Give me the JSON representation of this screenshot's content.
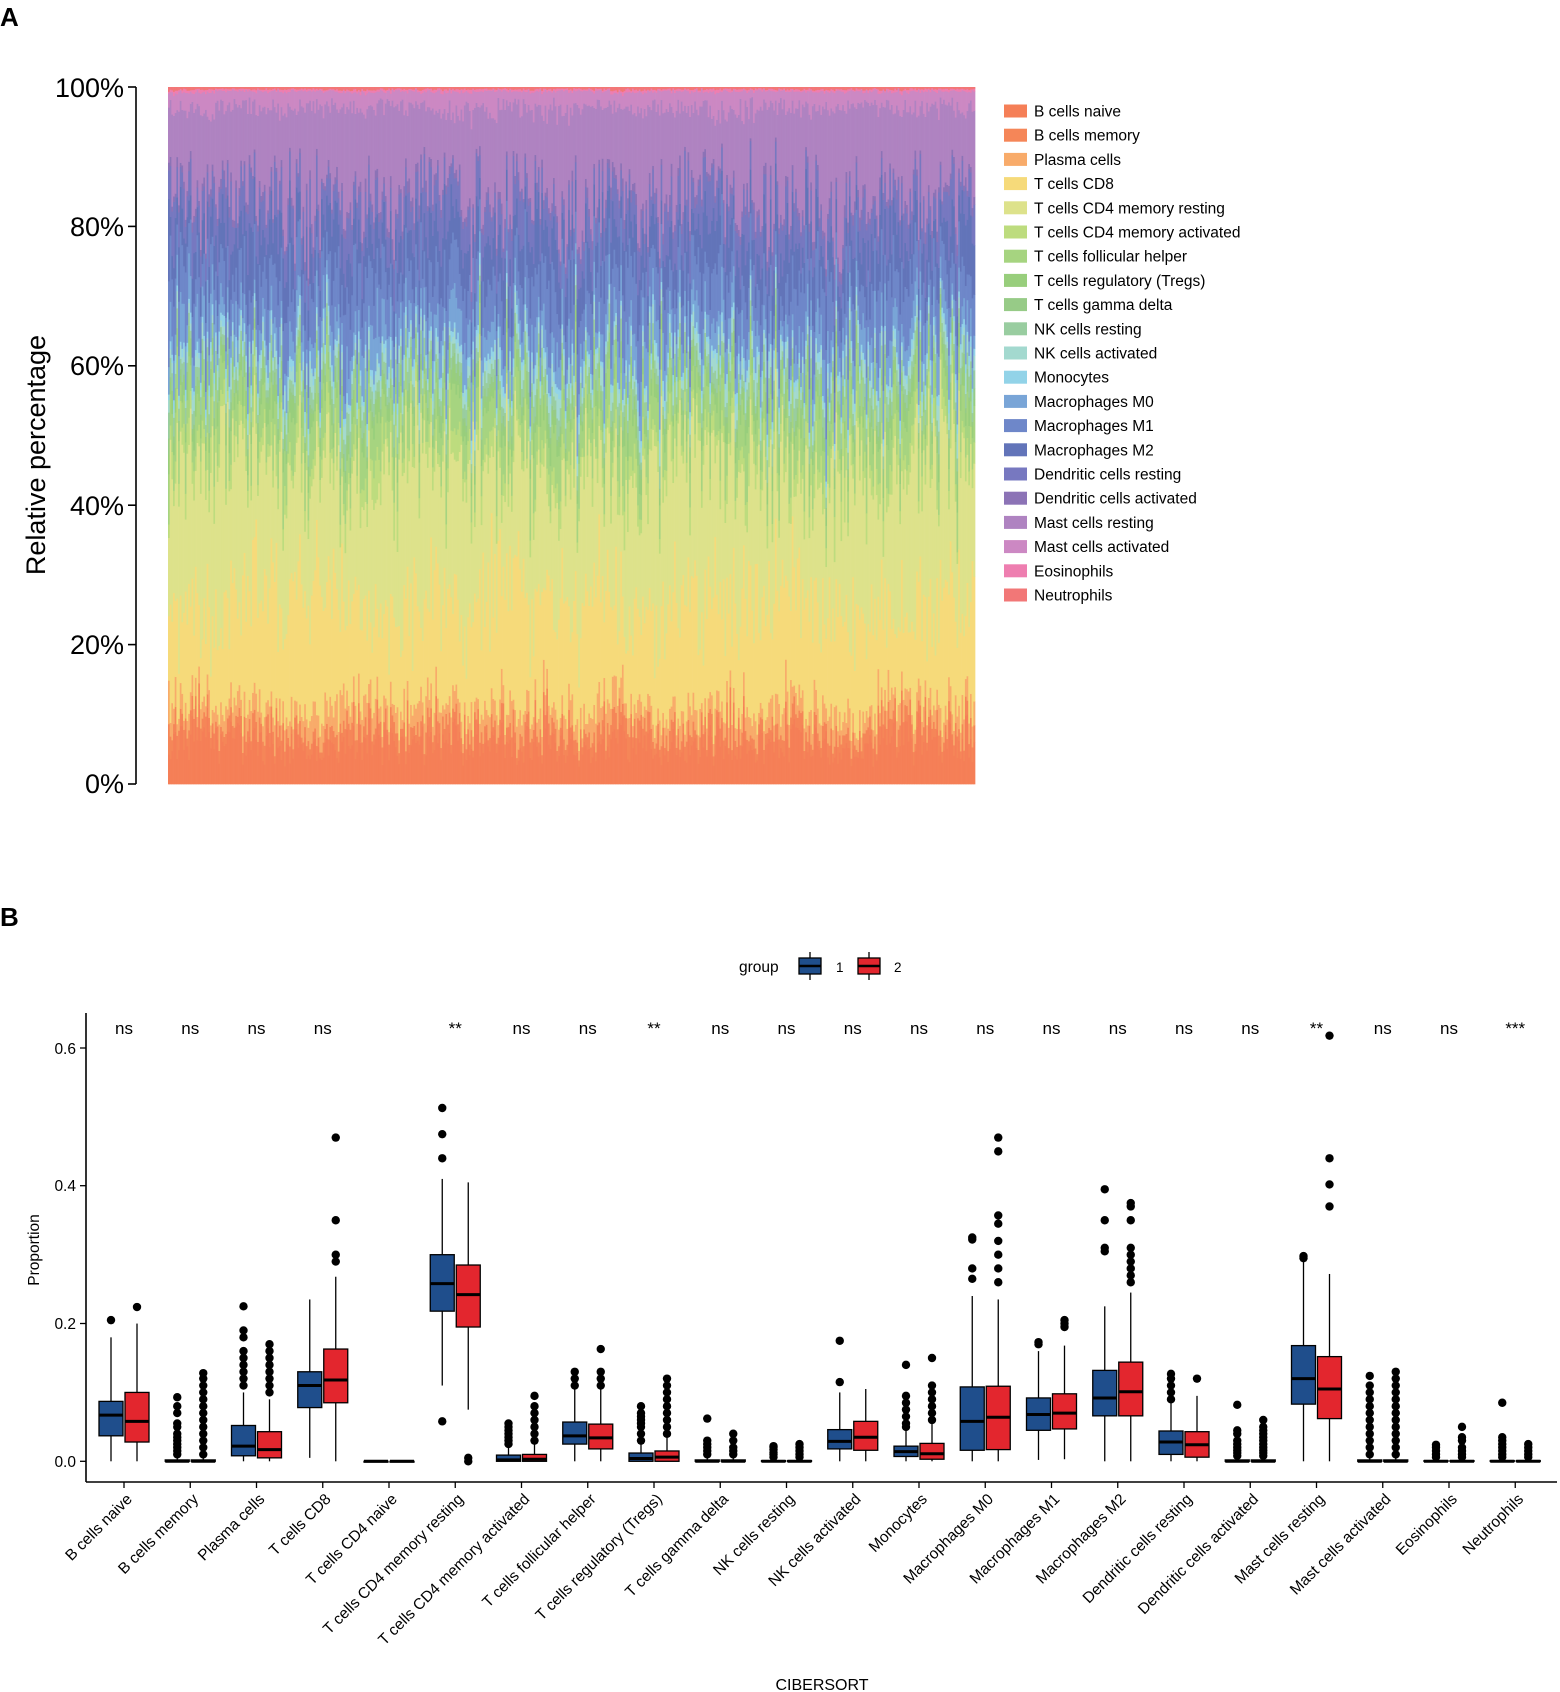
{
  "panelA": {
    "label": "A",
    "yaxis_label": "Relative percentage",
    "yticks": [
      "0%",
      "20%",
      "40%",
      "60%",
      "80%",
      "100%"
    ]
  },
  "panelB": {
    "label": "B",
    "legend_title": "group",
    "group_labels": [
      "1",
      "2"
    ],
    "ylabel": "Proportion",
    "xlabel": "CIBERSORT",
    "yticks": [
      "0.0",
      "0.2",
      "0.4",
      "0.6"
    ]
  },
  "colors": {
    "cell_types": [
      "#F57F57",
      "#F58658",
      "#F8AB6A",
      "#F6DA7A",
      "#DDE28B",
      "#BDDC7E",
      "#A6D480",
      "#98CE7C",
      "#97CB87",
      "#99CDA0",
      "#A3D9CF",
      "#92D3E8",
      "#79A5D7",
      "#6E87C9",
      "#6274B9",
      "#7778C0",
      "#8C73B6",
      "#AF83C1",
      "#CC88C3",
      "#EE7EB0",
      "#F27777"
    ],
    "group1": "#1F4E8C",
    "group2": "#E3262E"
  },
  "chart_data": [
    {
      "type": "bar",
      "subtype": "stacked-percent",
      "title": "",
      "ylabel": "Relative percentage",
      "ylim": [
        0,
        100
      ],
      "n_samples_approx": 480,
      "series_names": [
        "B cells naive",
        "B cells memory",
        "Plasma cells",
        "T cells CD8",
        "T cells CD4 memory resting",
        "T cells CD4 memory activated",
        "T cells follicular helper",
        "T cells regulatory (Tregs)",
        "T cells gamma delta",
        "NK cells resting",
        "NK cells activated",
        "Monocytes",
        "Macrophages M0",
        "Macrophages M1",
        "Macrophages M2",
        "Dendritic cells resting",
        "Dendritic cells activated",
        "Mast cells resting",
        "Mast cells activated",
        "Eosinophils",
        "Neutrophils"
      ],
      "mean_cumulative_top_percent": [
        6,
        8,
        11,
        26,
        45,
        48,
        53,
        55,
        56,
        58,
        60,
        61,
        65,
        72,
        78,
        83,
        84,
        97,
        99.4,
        99.7,
        100
      ]
    },
    {
      "type": "boxplot",
      "title": "",
      "xlabel": "CIBERSORT",
      "ylabel": "Proportion",
      "ylim": [
        -0.02,
        0.66
      ],
      "groups": [
        "1",
        "2"
      ],
      "categories": [
        "B cells naive",
        "B cells memory",
        "Plasma cells",
        "T cells CD8",
        "T cells CD4 naive",
        "T cells CD4 memory resting",
        "T cells CD4 memory activated",
        "T cells follicular helper",
        "T cells regulatory (Tregs)",
        "T cells gamma delta",
        "NK cells resting",
        "NK cells activated",
        "Monocytes",
        "Macrophages M0",
        "Macrophages M1",
        "Macrophages M2",
        "Dendritic cells resting",
        "Dendritic cells activated",
        "Mast cells resting",
        "Mast cells activated",
        "Eosinophils",
        "Neutrophils"
      ],
      "significance": [
        "ns",
        "ns",
        "ns",
        "ns",
        "",
        "**",
        "ns",
        "ns",
        "**",
        "ns",
        "ns",
        "ns",
        "ns",
        "ns",
        "ns",
        "ns",
        "ns",
        "ns",
        "**",
        "ns",
        "ns",
        "***"
      ],
      "series": [
        {
          "name": "1",
          "boxes": [
            {
              "whislo": 0,
              "q1": 0.037,
              "med": 0.067,
              "q3": 0.087,
              "whishi": 0.18,
              "fliers": [
                0.205
              ]
            },
            {
              "whislo": 0,
              "q1": 0,
              "med": 0,
              "q3": 0.002,
              "whishi": 0.005,
              "fliers": [
                0.01,
                0.015,
                0.02,
                0.025,
                0.03,
                0.035,
                0.04,
                0.05,
                0.055,
                0.07,
                0.08,
                0.093
              ]
            },
            {
              "whislo": 0,
              "q1": 0.008,
              "med": 0.022,
              "q3": 0.052,
              "whishi": 0.1,
              "fliers": [
                0.11,
                0.12,
                0.13,
                0.14,
                0.15,
                0.16,
                0.18,
                0.19,
                0.225
              ]
            },
            {
              "whislo": 0.005,
              "q1": 0.078,
              "med": 0.11,
              "q3": 0.13,
              "whishi": 0.235,
              "fliers": []
            },
            {
              "whislo": 0,
              "q1": 0,
              "med": 0,
              "q3": 0,
              "whishi": 0,
              "fliers": []
            },
            {
              "whislo": 0.11,
              "q1": 0.218,
              "med": 0.258,
              "q3": 0.3,
              "whishi": 0.41,
              "fliers": [
                0.058,
                0.44,
                0.475,
                0.513
              ]
            },
            {
              "whislo": 0,
              "q1": 0,
              "med": 0.002,
              "q3": 0.009,
              "whishi": 0.02,
              "fliers": [
                0.025,
                0.03,
                0.035,
                0.04,
                0.045,
                0.05,
                0.055
              ]
            },
            {
              "whislo": 0,
              "q1": 0.025,
              "med": 0.037,
              "q3": 0.057,
              "whishi": 0.105,
              "fliers": [
                0.11,
                0.12,
                0.13
              ]
            },
            {
              "whislo": 0,
              "q1": 0,
              "med": 0.004,
              "q3": 0.012,
              "whishi": 0.025,
              "fliers": [
                0.03,
                0.04,
                0.05,
                0.055,
                0.06,
                0.065,
                0.07,
                0.08
              ]
            },
            {
              "whislo": 0,
              "q1": 0,
              "med": 0,
              "q3": 0.002,
              "whishi": 0.005,
              "fliers": [
                0.01,
                0.015,
                0.02,
                0.025,
                0.03,
                0.062
              ]
            },
            {
              "whislo": 0,
              "q1": 0,
              "med": 0,
              "q3": 0.001,
              "whishi": 0.003,
              "fliers": [
                0.006,
                0.01,
                0.013,
                0.017,
                0.02,
                0.022
              ]
            },
            {
              "whislo": 0,
              "q1": 0.018,
              "med": 0.029,
              "q3": 0.046,
              "whishi": 0.1,
              "fliers": [
                0.115,
                0.175
              ]
            },
            {
              "whislo": 0,
              "q1": 0.007,
              "med": 0.014,
              "q3": 0.022,
              "whishi": 0.045,
              "fliers": [
                0.05,
                0.055,
                0.065,
                0.075,
                0.085,
                0.095,
                0.14
              ]
            },
            {
              "whislo": 0,
              "q1": 0.016,
              "med": 0.058,
              "q3": 0.108,
              "whishi": 0.24,
              "fliers": [
                0.265,
                0.28,
                0.322,
                0.325
              ]
            },
            {
              "whislo": 0.002,
              "q1": 0.045,
              "med": 0.068,
              "q3": 0.092,
              "whishi": 0.16,
              "fliers": [
                0.17,
                0.173
              ]
            },
            {
              "whislo": 0,
              "q1": 0.066,
              "med": 0.092,
              "q3": 0.132,
              "whishi": 0.225,
              "fliers": [
                0.305,
                0.31,
                0.35,
                0.395
              ]
            },
            {
              "whislo": 0,
              "q1": 0.01,
              "med": 0.028,
              "q3": 0.044,
              "whishi": 0.085,
              "fliers": [
                0.09,
                0.1,
                0.11,
                0.12,
                0.127
              ]
            },
            {
              "whislo": 0,
              "q1": 0,
              "med": 0,
              "q3": 0.002,
              "whishi": 0.004,
              "fliers": [
                0.008,
                0.012,
                0.016,
                0.02,
                0.025,
                0.03,
                0.04,
                0.045,
                0.082
              ]
            },
            {
              "whislo": 0,
              "q1": 0.083,
              "med": 0.12,
              "q3": 0.168,
              "whishi": 0.29,
              "fliers": [
                0.295,
                0.298
              ]
            },
            {
              "whislo": 0,
              "q1": 0,
              "med": 0,
              "q3": 0.002,
              "whishi": 0.005,
              "fliers": [
                0.01,
                0.02,
                0.03,
                0.04,
                0.05,
                0.06,
                0.07,
                0.08,
                0.09,
                0.1,
                0.11,
                0.124
              ]
            },
            {
              "whislo": 0,
              "q1": 0,
              "med": 0,
              "q3": 0.001,
              "whishi": 0.003,
              "fliers": [
                0.006,
                0.01,
                0.015,
                0.02,
                0.024
              ]
            },
            {
              "whislo": 0,
              "q1": 0,
              "med": 0,
              "q3": 0.001,
              "whishi": 0.003,
              "fliers": [
                0.006,
                0.01,
                0.015,
                0.02,
                0.025,
                0.03,
                0.035,
                0.085
              ]
            }
          ]
        },
        {
          "name": "2",
          "boxes": [
            {
              "whislo": 0,
              "q1": 0.028,
              "med": 0.058,
              "q3": 0.1,
              "whishi": 0.2,
              "fliers": [
                0.224
              ]
            },
            {
              "whislo": 0,
              "q1": 0,
              "med": 0,
              "q3": 0.002,
              "whishi": 0.005,
              "fliers": [
                0.01,
                0.02,
                0.03,
                0.04,
                0.05,
                0.06,
                0.07,
                0.08,
                0.09,
                0.1,
                0.11,
                0.12,
                0.128
              ]
            },
            {
              "whislo": 0,
              "q1": 0.005,
              "med": 0.017,
              "q3": 0.043,
              "whishi": 0.09,
              "fliers": [
                0.1,
                0.11,
                0.12,
                0.13,
                0.14,
                0.15,
                0.16,
                0.17
              ]
            },
            {
              "whislo": 0,
              "q1": 0.085,
              "med": 0.118,
              "q3": 0.163,
              "whishi": 0.268,
              "fliers": [
                0.29,
                0.3,
                0.35,
                0.47
              ]
            },
            {
              "whislo": 0,
              "q1": 0,
              "med": 0,
              "q3": 0,
              "whishi": 0,
              "fliers": []
            },
            {
              "whislo": 0.075,
              "q1": 0.195,
              "med": 0.242,
              "q3": 0.285,
              "whishi": 0.405,
              "fliers": [
                0.0,
                0.005
              ]
            },
            {
              "whislo": 0,
              "q1": 0,
              "med": 0.003,
              "q3": 0.01,
              "whishi": 0.025,
              "fliers": [
                0.03,
                0.04,
                0.05,
                0.06,
                0.07,
                0.08,
                0.095
              ]
            },
            {
              "whislo": 0,
              "q1": 0.018,
              "med": 0.034,
              "q3": 0.054,
              "whishi": 0.105,
              "fliers": [
                0.11,
                0.12,
                0.13,
                0.163
              ]
            },
            {
              "whislo": 0,
              "q1": 0,
              "med": 0.006,
              "q3": 0.015,
              "whishi": 0.035,
              "fliers": [
                0.04,
                0.05,
                0.06,
                0.07,
                0.08,
                0.09,
                0.1,
                0.11,
                0.12
              ]
            },
            {
              "whislo": 0,
              "q1": 0,
              "med": 0,
              "q3": 0.002,
              "whishi": 0.005,
              "fliers": [
                0.01,
                0.015,
                0.02,
                0.03,
                0.04
              ]
            },
            {
              "whislo": 0,
              "q1": 0,
              "med": 0,
              "q3": 0.001,
              "whishi": 0.003,
              "fliers": [
                0.006,
                0.01,
                0.015,
                0.02,
                0.025
              ]
            },
            {
              "whislo": 0,
              "q1": 0.016,
              "med": 0.035,
              "q3": 0.058,
              "whishi": 0.105,
              "fliers": []
            },
            {
              "whislo": 0,
              "q1": 0.003,
              "med": 0.011,
              "q3": 0.026,
              "whishi": 0.055,
              "fliers": [
                0.06,
                0.07,
                0.08,
                0.09,
                0.1,
                0.11,
                0.15
              ]
            },
            {
              "whislo": 0,
              "q1": 0.017,
              "med": 0.064,
              "q3": 0.109,
              "whishi": 0.235,
              "fliers": [
                0.26,
                0.28,
                0.3,
                0.32,
                0.345,
                0.357,
                0.45,
                0.47
              ]
            },
            {
              "whislo": 0.003,
              "q1": 0.047,
              "med": 0.07,
              "q3": 0.098,
              "whishi": 0.168,
              "fliers": [
                0.195,
                0.2,
                0.205
              ]
            },
            {
              "whislo": 0,
              "q1": 0.066,
              "med": 0.101,
              "q3": 0.144,
              "whishi": 0.245,
              "fliers": [
                0.26,
                0.27,
                0.28,
                0.29,
                0.3,
                0.31,
                0.35,
                0.37,
                0.375
              ]
            },
            {
              "whislo": 0,
              "q1": 0.006,
              "med": 0.024,
              "q3": 0.043,
              "whishi": 0.095,
              "fliers": [
                0.12
              ]
            },
            {
              "whislo": 0,
              "q1": 0,
              "med": 0,
              "q3": 0.002,
              "whishi": 0.004,
              "fliers": [
                0.008,
                0.012,
                0.016,
                0.02,
                0.025,
                0.03,
                0.035,
                0.04,
                0.045,
                0.05,
                0.06
              ]
            },
            {
              "whislo": 0,
              "q1": 0.062,
              "med": 0.105,
              "q3": 0.152,
              "whishi": 0.272,
              "fliers": [
                0.37,
                0.402,
                0.44,
                0.618
              ]
            },
            {
              "whislo": 0,
              "q1": 0,
              "med": 0,
              "q3": 0.002,
              "whishi": 0.005,
              "fliers": [
                0.01,
                0.02,
                0.03,
                0.04,
                0.05,
                0.06,
                0.07,
                0.08,
                0.09,
                0.1,
                0.11,
                0.12,
                0.13
              ]
            },
            {
              "whislo": 0,
              "q1": 0,
              "med": 0,
              "q3": 0.001,
              "whishi": 0.003,
              "fliers": [
                0.006,
                0.01,
                0.015,
                0.02,
                0.03,
                0.035,
                0.05
              ]
            },
            {
              "whislo": 0,
              "q1": 0,
              "med": 0,
              "q3": 0.001,
              "whishi": 0.003,
              "fliers": [
                0.006,
                0.01,
                0.015,
                0.02,
                0.025
              ]
            }
          ]
        }
      ]
    }
  ]
}
